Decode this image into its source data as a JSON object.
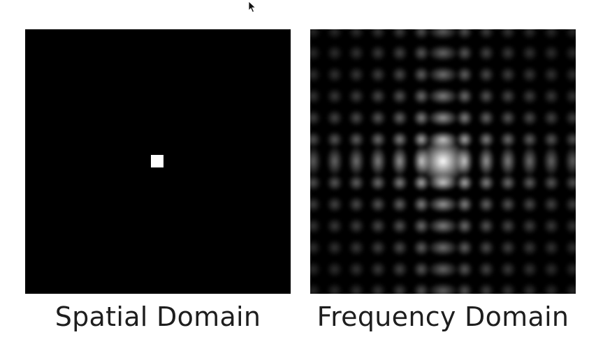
{
  "captions": {
    "spatial": "Spatial Domain",
    "frequency": "Frequency Domain"
  },
  "colors": {
    "background": "#ffffff",
    "panel": "#000000",
    "signal": "#ffffff",
    "caption_text": "#1e1e1e"
  },
  "icons": {
    "cursor": "mouse-pointer-icon"
  }
}
